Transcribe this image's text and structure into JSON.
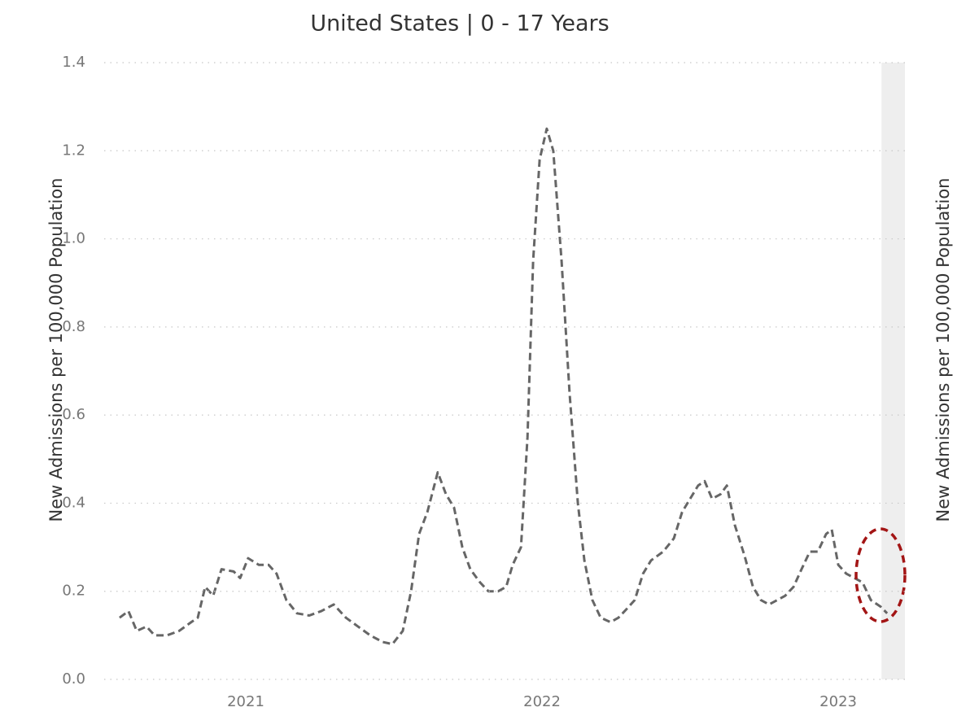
{
  "chart_data": {
    "type": "line",
    "title": "United States | 0 - 17 Years",
    "y_label": "New Admissions per 100,000 Population",
    "y2_label": "New Admissions per 100,000 Population",
    "color": "#666666",
    "dashed": true,
    "grid": true,
    "shaded_region": [
      2023.146,
      2023.225
    ],
    "xlim": [
      2020.522,
      2023.225
    ],
    "xticks": [
      2021,
      2022,
      2023
    ],
    "ylim": [
      0,
      1.4
    ],
    "yticks": [
      {
        "value": 0,
        "label": "0.0"
      },
      0.2,
      0.4,
      0.6,
      0.8,
      {
        "value": 1,
        "label": "1.0"
      },
      1.2,
      1.4
    ],
    "x": [
      2020.574,
      2020.604,
      2020.632,
      2020.665,
      2020.692,
      2020.734,
      2020.775,
      2020.816,
      2020.838,
      2020.863,
      2020.89,
      2020.918,
      2020.959,
      2020.981,
      2021.008,
      2021.044,
      2021.077,
      2021.104,
      2021.137,
      2021.173,
      2021.214,
      2021.255,
      2021.297,
      2021.338,
      2021.379,
      2021.42,
      2021.462,
      2021.495,
      2021.53,
      2021.558,
      2021.585,
      2021.613,
      2021.648,
      2021.676,
      2021.703,
      2021.731,
      2021.758,
      2021.791,
      2021.819,
      2021.852,
      2021.879,
      2021.901,
      2021.929,
      2021.951,
      2021.97,
      2021.992,
      2022.016,
      2022.038,
      2022.066,
      2022.093,
      2022.121,
      2022.143,
      2022.17,
      2022.198,
      2022.231,
      2022.258,
      2022.286,
      2022.313,
      2022.341,
      2022.368,
      2022.409,
      2022.445,
      2022.473,
      2022.5,
      2022.527,
      2022.549,
      2022.574,
      2022.602,
      2022.624,
      2022.651,
      2022.684,
      2022.712,
      2022.739,
      2022.766,
      2022.794,
      2022.821,
      2022.849,
      2022.876,
      2022.904,
      2022.931,
      2022.959,
      2022.978,
      2023.0,
      2023.027,
      2023.055,
      2023.082,
      2023.11,
      2023.143,
      2023.165
    ],
    "values": [
      0.14,
      0.155,
      0.11,
      0.12,
      0.1,
      0.1,
      0.11,
      0.13,
      0.14,
      0.21,
      0.19,
      0.25,
      0.245,
      0.23,
      0.275,
      0.26,
      0.26,
      0.24,
      0.18,
      0.15,
      0.145,
      0.155,
      0.17,
      0.14,
      0.12,
      0.1,
      0.085,
      0.08,
      0.11,
      0.2,
      0.33,
      0.38,
      0.47,
      0.42,
      0.39,
      0.3,
      0.25,
      0.22,
      0.2,
      0.2,
      0.21,
      0.26,
      0.3,
      0.55,
      0.95,
      1.18,
      1.25,
      1.2,
      0.95,
      0.65,
      0.4,
      0.27,
      0.18,
      0.14,
      0.13,
      0.14,
      0.16,
      0.18,
      0.24,
      0.27,
      0.29,
      0.32,
      0.38,
      0.41,
      0.44,
      0.45,
      0.41,
      0.42,
      0.44,
      0.35,
      0.28,
      0.21,
      0.18,
      0.17,
      0.18,
      0.19,
      0.21,
      0.25,
      0.29,
      0.29,
      0.33,
      0.34,
      0.26,
      0.24,
      0.23,
      0.22,
      0.18,
      0.165,
      0.15
    ]
  }
}
